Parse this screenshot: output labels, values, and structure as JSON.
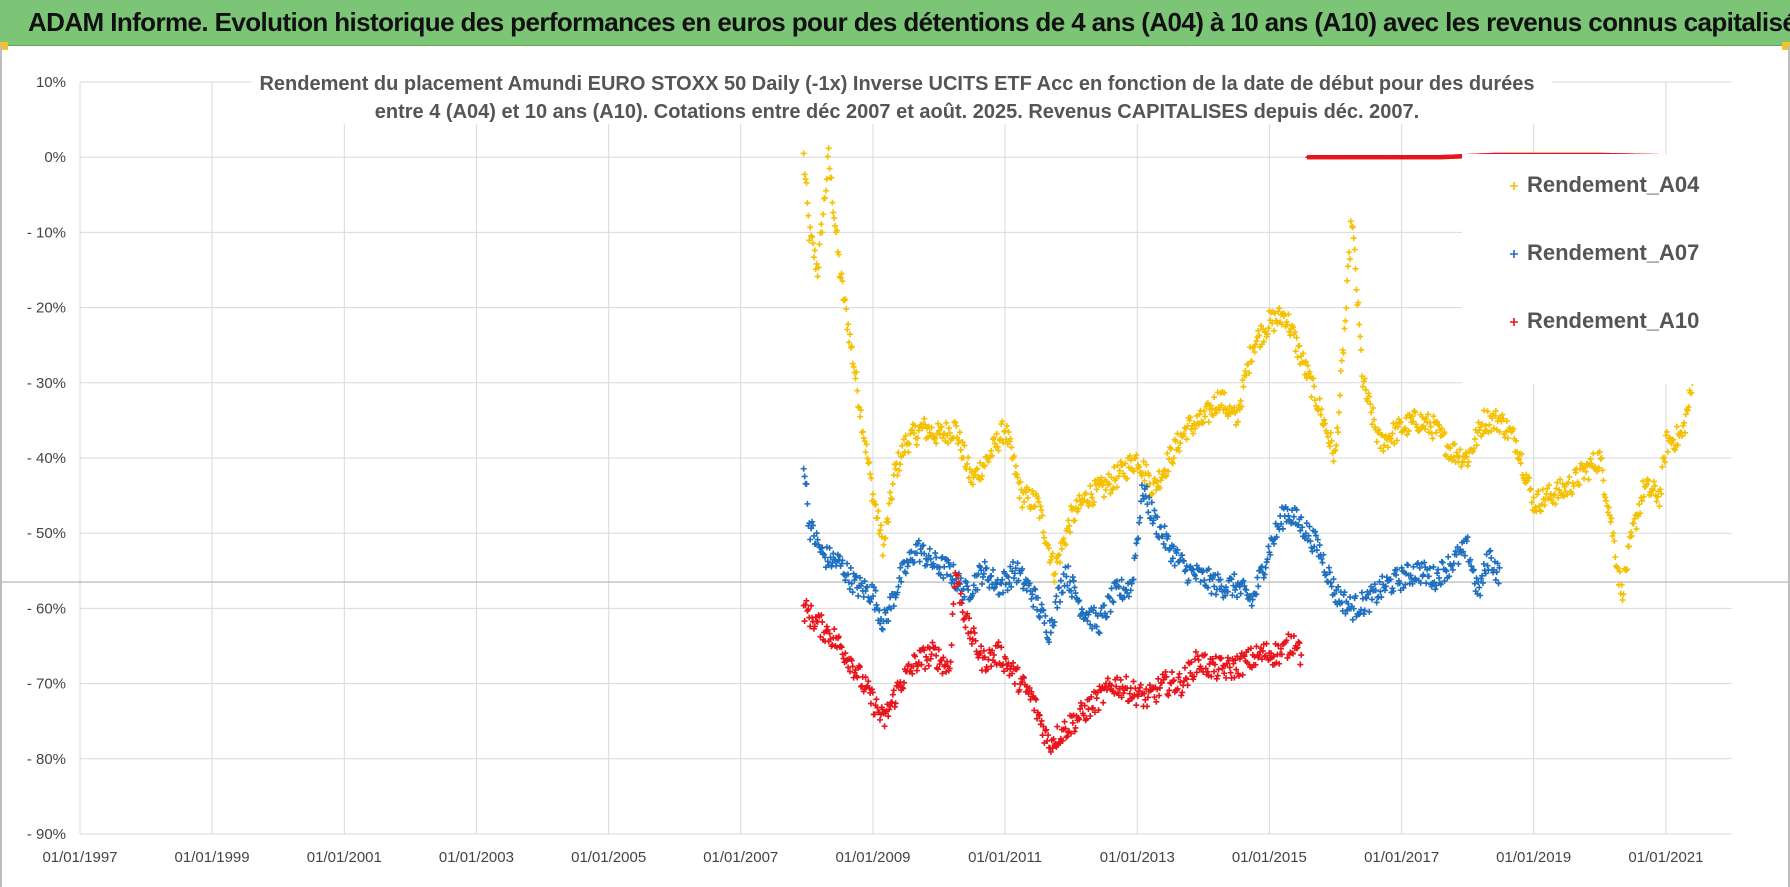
{
  "header": {
    "title": "ADAM Informe. Evolution historique des performances en euros pour des détentions de 4 ans (A04) à 10 ans (A10) avec les revenus connus capitalisés",
    "background": "#7cc576"
  },
  "chart_data": {
    "type": "scatter",
    "title_lines": [
      "Rendement du placement Amundi EURO STOXX 50 Daily (-1x) Inverse UCITS ETF Acc en fonction de la date de début pour des durées",
      "entre 4 (A04) et 10 ans (A10).  Cotations entre déc 2007 et août. 2025. Revenus CAPITALISES depuis déc. 2007."
    ],
    "xlabel": "",
    "ylabel": "",
    "x_ticks": [
      "01/01/1997",
      "01/01/1999",
      "01/01/2001",
      "01/01/2003",
      "01/01/2005",
      "01/01/2007",
      "01/01/2009",
      "01/01/2011",
      "01/01/2013",
      "01/01/2015",
      "01/01/2017",
      "01/01/2019",
      "01/01/2021"
    ],
    "y_ticks": [
      "10%",
      "0%",
      "- 10%",
      "- 20%",
      "- 30%",
      "- 40%",
      "- 50%",
      "- 60%",
      "- 70%",
      "- 80%",
      "- 90%"
    ],
    "xlim": [
      "1997-01-01",
      "2022-01-01"
    ],
    "ylim": [
      -90,
      10
    ],
    "grid": true,
    "legend_position": "top-right",
    "reference_line_y": -56.5,
    "series": [
      {
        "name": "Rendement_A04",
        "color": "#f5c000",
        "marker": "+",
        "points": [
          [
            "2007-12-15",
            0
          ],
          [
            "2008-01-15",
            -10
          ],
          [
            "2008-03-01",
            -15
          ],
          [
            "2008-05-01",
            0
          ],
          [
            "2008-07-01",
            -15
          ],
          [
            "2008-09-01",
            -25
          ],
          [
            "2008-11-01",
            -35
          ],
          [
            "2009-01-01",
            -45
          ],
          [
            "2009-03-01",
            -52
          ],
          [
            "2009-05-01",
            -42
          ],
          [
            "2009-07-01",
            -38
          ],
          [
            "2009-10-01",
            -36
          ],
          [
            "2010-01-01",
            -37
          ],
          [
            "2010-04-01",
            -36
          ],
          [
            "2010-07-01",
            -43
          ],
          [
            "2010-10-01",
            -40
          ],
          [
            "2011-01-01",
            -36
          ],
          [
            "2011-04-01",
            -45
          ],
          [
            "2011-07-01",
            -46
          ],
          [
            "2011-10-01",
            -55
          ],
          [
            "2012-01-01",
            -48
          ],
          [
            "2012-04-01",
            -45
          ],
          [
            "2012-07-01",
            -44
          ],
          [
            "2012-10-01",
            -42
          ],
          [
            "2013-01-01",
            -40
          ],
          [
            "2013-04-01",
            -44
          ],
          [
            "2013-07-01",
            -40
          ],
          [
            "2013-10-01",
            -36
          ],
          [
            "2014-01-01",
            -35
          ],
          [
            "2014-04-01",
            -32
          ],
          [
            "2014-07-01",
            -35
          ],
          [
            "2014-10-01",
            -25
          ],
          [
            "2015-01-01",
            -22
          ],
          [
            "2015-04-01",
            -21
          ],
          [
            "2015-07-01",
            -27
          ],
          [
            "2015-10-01",
            -33
          ],
          [
            "2016-01-01",
            -40
          ],
          [
            "2016-03-01",
            -20
          ],
          [
            "2016-04-01",
            -8
          ],
          [
            "2016-06-01",
            -30
          ],
          [
            "2016-09-01",
            -38
          ],
          [
            "2017-01-01",
            -36
          ],
          [
            "2017-04-01",
            -35
          ],
          [
            "2017-07-01",
            -36
          ],
          [
            "2017-10-01",
            -39
          ],
          [
            "2018-01-01",
            -40
          ],
          [
            "2018-04-01",
            -35
          ],
          [
            "2018-07-01",
            -35
          ],
          [
            "2018-10-01",
            -38
          ],
          [
            "2019-01-01",
            -46
          ],
          [
            "2019-04-01",
            -45
          ],
          [
            "2019-07-01",
            -44
          ],
          [
            "2019-10-01",
            -42
          ],
          [
            "2020-01-01",
            -40
          ],
          [
            "2020-03-01",
            -48
          ],
          [
            "2020-05-01",
            -58
          ],
          [
            "2020-07-01",
            -50
          ],
          [
            "2020-09-01",
            -44
          ],
          [
            "2020-12-01",
            -45
          ],
          [
            "2021-01-01",
            -38
          ],
          [
            "2021-04-01",
            -37
          ],
          [
            "2021-06-01",
            -30
          ]
        ]
      },
      {
        "name": "Rendement_A07",
        "color": "#1f6fbf",
        "marker": "+",
        "points": [
          [
            "2007-12-15",
            -40
          ],
          [
            "2008-01-15",
            -49
          ],
          [
            "2008-04-01",
            -53
          ],
          [
            "2008-07-01",
            -54
          ],
          [
            "2008-10-01",
            -57
          ],
          [
            "2009-01-01",
            -58
          ],
          [
            "2009-03-01",
            -62
          ],
          [
            "2009-06-01",
            -56
          ],
          [
            "2009-09-01",
            -52
          ],
          [
            "2009-12-01",
            -54
          ],
          [
            "2010-03-01",
            -55
          ],
          [
            "2010-06-01",
            -58
          ],
          [
            "2010-09-01",
            -55
          ],
          [
            "2010-12-01",
            -57
          ],
          [
            "2011-03-01",
            -55
          ],
          [
            "2011-06-01",
            -58
          ],
          [
            "2011-09-01",
            -63
          ],
          [
            "2011-12-01",
            -55
          ],
          [
            "2012-03-01",
            -60
          ],
          [
            "2012-06-01",
            -62
          ],
          [
            "2012-09-01",
            -58
          ],
          [
            "2012-12-01",
            -57
          ],
          [
            "2013-02-01",
            -44
          ],
          [
            "2013-04-01",
            -48
          ],
          [
            "2013-07-01",
            -52
          ],
          [
            "2013-10-01",
            -55
          ],
          [
            "2014-01-01",
            -56
          ],
          [
            "2014-04-01",
            -57
          ],
          [
            "2014-07-01",
            -57
          ],
          [
            "2014-10-01",
            -59
          ],
          [
            "2015-01-01",
            -52
          ],
          [
            "2015-04-01",
            -47
          ],
          [
            "2015-07-01",
            -49
          ],
          [
            "2015-10-01",
            -52
          ],
          [
            "2016-01-01",
            -58
          ],
          [
            "2016-04-01",
            -60
          ],
          [
            "2016-07-01",
            -59
          ],
          [
            "2016-10-01",
            -57
          ],
          [
            "2017-01-01",
            -56
          ],
          [
            "2017-04-01",
            -55
          ],
          [
            "2017-07-01",
            -56
          ],
          [
            "2017-10-01",
            -54
          ],
          [
            "2018-01-01",
            -52
          ],
          [
            "2018-03-01",
            -58
          ],
          [
            "2018-05-01",
            -53
          ],
          [
            "2018-07-01",
            -56
          ]
        ]
      },
      {
        "name": "Rendement_A10",
        "color": "#e8141b",
        "marker": "+",
        "points": [
          [
            "2007-12-15",
            -60
          ],
          [
            "2008-03-01",
            -62
          ],
          [
            "2008-06-01",
            -64
          ],
          [
            "2008-09-01",
            -67
          ],
          [
            "2008-12-01",
            -71
          ],
          [
            "2009-03-01",
            -75
          ],
          [
            "2009-06-01",
            -70
          ],
          [
            "2009-09-01",
            -67
          ],
          [
            "2009-12-01",
            -66
          ],
          [
            "2010-03-01",
            -68
          ],
          [
            "2010-04-01",
            -55
          ],
          [
            "2010-06-01",
            -62
          ],
          [
            "2010-09-01",
            -67
          ],
          [
            "2010-12-01",
            -66
          ],
          [
            "2011-03-01",
            -69
          ],
          [
            "2011-06-01",
            -72
          ],
          [
            "2011-09-01",
            -78
          ],
          [
            "2011-12-01",
            -76
          ],
          [
            "2012-03-01",
            -74
          ],
          [
            "2012-06-01",
            -72
          ],
          [
            "2012-09-01",
            -70
          ],
          [
            "2012-12-01",
            -71
          ],
          [
            "2013-03-01",
            -72
          ],
          [
            "2013-06-01",
            -70
          ],
          [
            "2013-09-01",
            -70
          ],
          [
            "2013-12-01",
            -67
          ],
          [
            "2014-03-01",
            -68
          ],
          [
            "2014-06-01",
            -68
          ],
          [
            "2014-09-01",
            -67
          ],
          [
            "2014-12-01",
            -66
          ],
          [
            "2015-03-01",
            -66
          ],
          [
            "2015-06-01",
            -64
          ],
          [
            "2015-07-01",
            -67
          ]
        ]
      },
      {
        "name": "",
        "color": "#e8141b",
        "marker": "+",
        "points": [
          [
            "2015-08-01",
            0
          ],
          [
            "2016-06-01",
            0
          ],
          [
            "2017-08-01",
            0
          ],
          [
            "2018-06-01",
            0.3
          ],
          [
            "2020-01-01",
            0.3
          ],
          [
            "2021-09-01",
            0
          ]
        ]
      }
    ]
  }
}
